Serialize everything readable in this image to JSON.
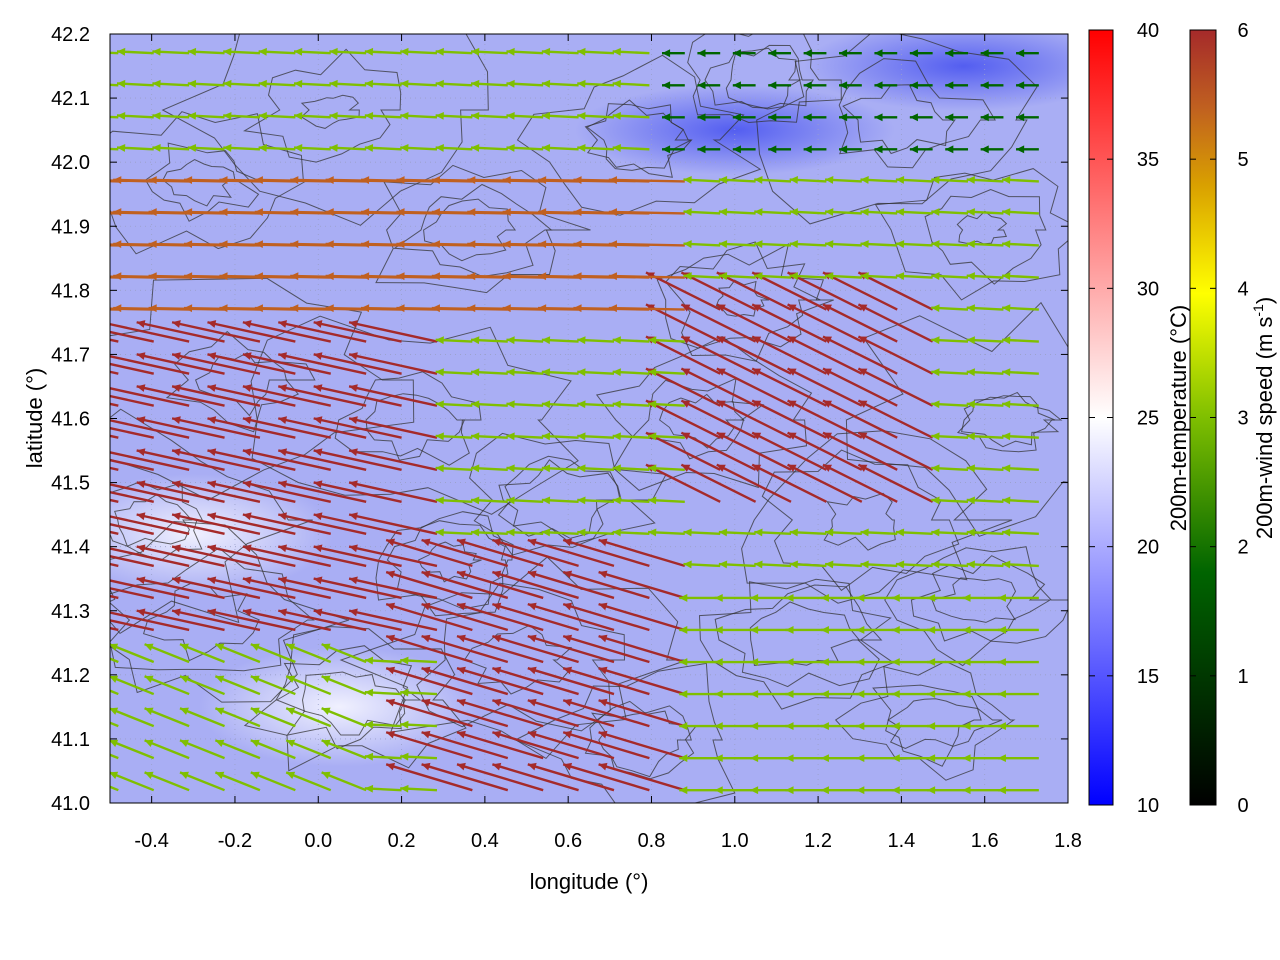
{
  "chart_data": {
    "type": "vector-field",
    "title": "",
    "xlabel": "longitude (°)",
    "ylabel": "latitude (°)",
    "xlim": [
      -0.5,
      1.8
    ],
    "ylim": [
      41.0,
      42.2
    ],
    "x_ticks": [
      "-0.4",
      "-0.2",
      "0.0",
      "0.2",
      "0.4",
      "0.6",
      "0.8",
      "1.0",
      "1.2",
      "1.4",
      "1.6",
      "1.8"
    ],
    "x_tick_values": [
      -0.4,
      -0.2,
      0.0,
      0.2,
      0.4,
      0.6,
      0.8,
      1.0,
      1.2,
      1.4,
      1.6,
      1.8
    ],
    "y_ticks": [
      "41.0",
      "41.1",
      "41.2",
      "41.3",
      "41.4",
      "41.5",
      "41.6",
      "41.7",
      "41.8",
      "41.9",
      "42.0",
      "42.1",
      "42.2"
    ],
    "y_tick_values": [
      41.0,
      41.1,
      41.2,
      41.3,
      41.4,
      41.5,
      41.6,
      41.7,
      41.8,
      41.9,
      42.0,
      42.1,
      42.2
    ],
    "temperature_colorbar": {
      "label": "200m-temperature (°C)",
      "range": [
        10,
        40
      ],
      "ticks": [
        "10",
        "15",
        "20",
        "25",
        "30",
        "35",
        "40"
      ],
      "tick_values": [
        10,
        15,
        20,
        25,
        30,
        35,
        40
      ],
      "colors": [
        "#0000ff",
        "#ffffff",
        "#ff0000"
      ]
    },
    "wind_colorbar": {
      "label_main": "200m-wind speed (m s",
      "label_sup": "-1",
      "label_end": ")",
      "range": [
        0,
        6
      ],
      "ticks": [
        "0",
        "1",
        "2",
        "3",
        "4",
        "5",
        "6"
      ],
      "tick_values": [
        0,
        1,
        2,
        3,
        4,
        5,
        6
      ],
      "colors": [
        "#000000",
        "#006400",
        "#7fbf00",
        "#ffff00",
        "#d9a000",
        "#c06020",
        "#a52a2a"
      ]
    },
    "wind_field_regions": [
      {
        "lon": [
          -0.5,
          0.3
        ],
        "lat": [
          41.25,
          41.72
        ],
        "speed": 6,
        "u": -1.0,
        "v": 0.22
      },
      {
        "lon": [
          0.3,
          0.9
        ],
        "lat": [
          41.0,
          41.4
        ],
        "speed": 6,
        "u": -1.0,
        "v": 0.3
      },
      {
        "lon": [
          0.9,
          1.55
        ],
        "lat": [
          41.45,
          41.8
        ],
        "speed": 5.5,
        "u": -1.0,
        "v": 0.5
      },
      {
        "lon": [
          -0.5,
          0.9
        ],
        "lat": [
          41.72,
          42.0
        ],
        "speed": 5,
        "u": -1.0,
        "v": 0.02
      },
      {
        "lon": [
          0.9,
          1.8
        ],
        "lat": [
          41.0,
          41.35
        ],
        "speed": 2.5,
        "u": -1.0,
        "v": 0.0
      },
      {
        "lon": [
          0.8,
          1.8
        ],
        "lat": [
          42.0,
          42.2
        ],
        "speed": 1.2,
        "u": -1.0,
        "v": 0.0
      },
      {
        "lon": [
          -0.5,
          0.2
        ],
        "lat": [
          41.0,
          41.22
        ],
        "speed": 3,
        "u": -1.0,
        "v": 0.4
      }
    ],
    "temperature_field": {
      "typical": 19,
      "warm_patches": [
        {
          "lon": -0.3,
          "lat": 41.42,
          "value": 24
        },
        {
          "lon": 0.05,
          "lat": 41.15,
          "value": 23
        }
      ],
      "cool_patches": [
        {
          "lon": 1.55,
          "lat": 42.15,
          "value": 15
        },
        {
          "lon": 1.0,
          "lat": 42.05,
          "value": 16
        }
      ]
    }
  }
}
